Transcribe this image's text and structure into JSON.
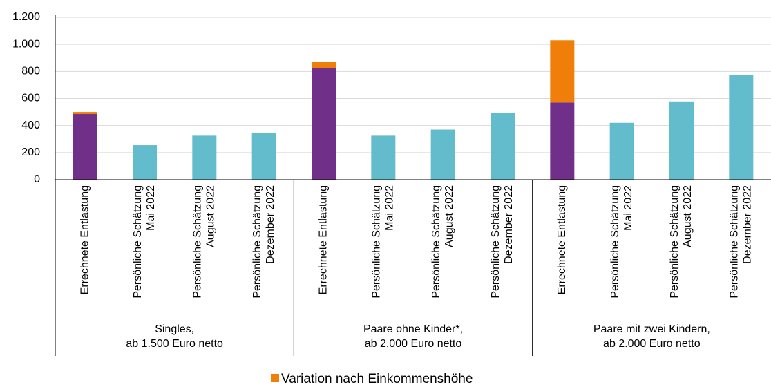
{
  "chart_data": {
    "type": "stacked_bar",
    "categories": [
      [
        "Errechnete Entlastung"
      ],
      [
        "Persönliche Schätzung",
        "Mai 2022"
      ],
      [
        "Persönliche Schätzung",
        "August 2022"
      ],
      [
        "Persönliche Schätzung",
        "Dezember 2022"
      ],
      [
        "Errechnete Entlastung"
      ],
      [
        "Persönliche Schätzung",
        "Mai 2022"
      ],
      [
        "Persönliche Schätzung",
        "August 2022"
      ],
      [
        "Persönliche Schätzung",
        "Dezember 2022"
      ],
      [
        "Errechnete Entlastung"
      ],
      [
        "Persönliche Schätzung",
        "Mai 2022"
      ],
      [
        "Persönliche Schätzung",
        "August 2022"
      ],
      [
        "Persönliche Schätzung",
        "Dezember 2022"
      ]
    ],
    "groups": [
      [
        "Singles,",
        "ab 1.500 Euro netto"
      ],
      [
        "Paare ohne Kinder*,",
        "ab 2.000 Euro netto"
      ],
      [
        "Paare mit zwei Kindern,",
        "ab 2.000 Euro netto"
      ]
    ],
    "series": [
      {
        "color": "#70308a",
        "values": [
          485,
          null,
          null,
          null,
          825,
          null,
          null,
          null,
          570,
          null,
          null,
          null
        ]
      },
      {
        "color": "#62bccb",
        "values": [
          null,
          255,
          325,
          345,
          null,
          325,
          370,
          495,
          null,
          420,
          578,
          772
        ]
      },
      {
        "name": "Variation nach Einkommenshöhe",
        "color": "#f07f09",
        "values": [
          15,
          null,
          null,
          null,
          45,
          null,
          null,
          null,
          460,
          null,
          null,
          null
        ]
      }
    ],
    "ylim": [
      0,
      1200
    ],
    "yticks": [
      0,
      200,
      400,
      600,
      800,
      {
        "value": 1000,
        "label": "1.000"
      },
      {
        "value": 1200,
        "label": "1.200"
      }
    ]
  }
}
